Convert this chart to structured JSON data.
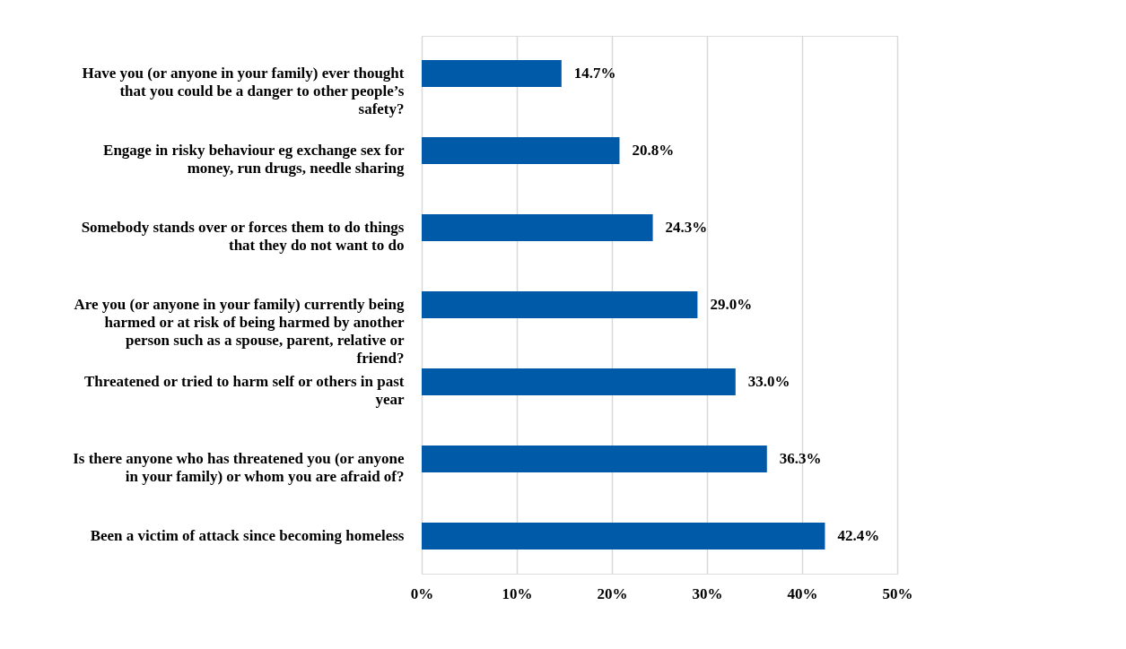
{
  "chart_data": {
    "type": "bar",
    "orientation": "horizontal",
    "categories": [
      "Have you (or anyone in your family) ever thought that you could be a danger to other people’s safety?",
      "Engage in risky behaviour eg exchange sex for money, run drugs, needle sharing",
      "Somebody stands over or forces them to do things that they do not want to do",
      "Are you (or anyone in your family) currently being harmed or at risk of being harmed by another person such as a spouse, parent, relative or friend?",
      "Threatened or tried to harm self or others in past year",
      "Is there anyone who has threatened you (or anyone in your family) or whom you are afraid of?",
      "Been a victim of attack since becoming homeless"
    ],
    "values": [
      14.7,
      20.8,
      24.3,
      29.0,
      33.0,
      36.3,
      42.4
    ],
    "value_labels": [
      "14.7%",
      "20.8%",
      "24.3%",
      "29.0%",
      "33.0%",
      "36.3%",
      "42.4%"
    ],
    "color": "#005aa7",
    "xlim": [
      0,
      50
    ],
    "xticks": [
      {
        "value": 0,
        "label": "0%"
      },
      {
        "value": 10,
        "label": "10%"
      },
      {
        "value": 20,
        "label": "20%"
      },
      {
        "value": 30,
        "label": "30%"
      },
      {
        "value": 40,
        "label": "40%"
      },
      {
        "value": 50,
        "label": "50%"
      }
    ],
    "grid": "x"
  }
}
